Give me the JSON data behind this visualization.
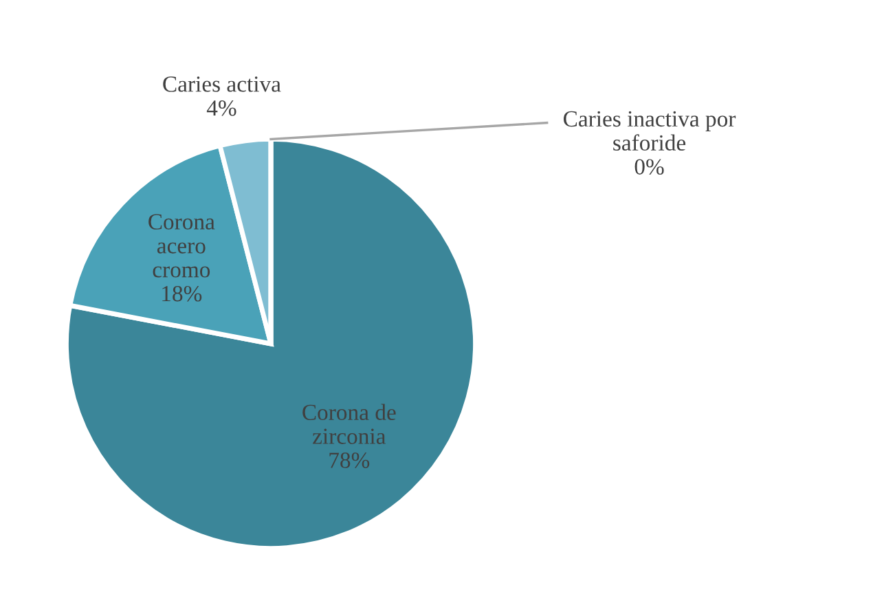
{
  "chart_data": {
    "type": "pie",
    "categories": [
      "Corona de\nzirconia",
      "Corona\nacero\ncromo",
      "Caries activa",
      "Caries inactiva por\nsaforide"
    ],
    "values": [
      78,
      18,
      4,
      0
    ],
    "value_labels": [
      "78%",
      "18%",
      "4%",
      "0%"
    ],
    "colors": [
      "#3b8699",
      "#4aa2b8",
      "#7fbdd2",
      "#a9d3e2"
    ],
    "legend": false
  }
}
